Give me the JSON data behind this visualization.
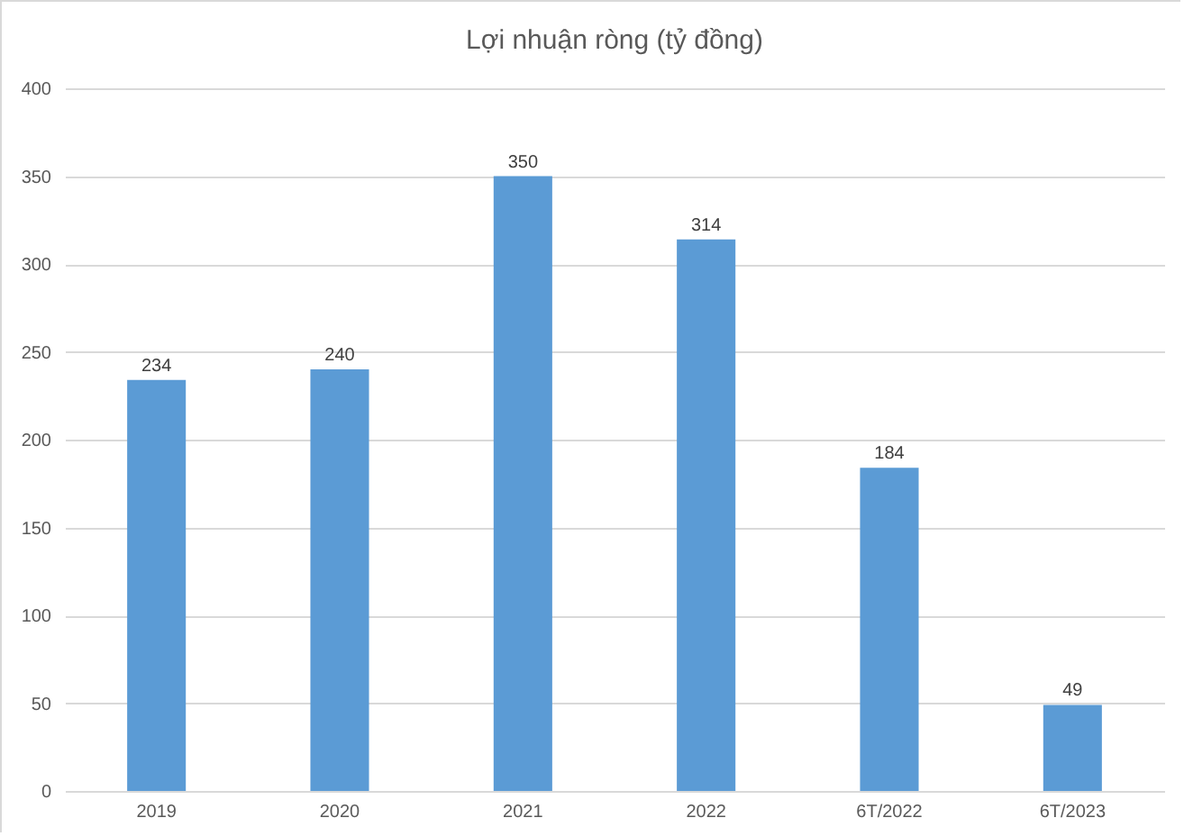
{
  "chart_data": {
    "type": "bar",
    "title": "Lợi nhuận ròng (tỷ đồng)",
    "categories": [
      "2019",
      "2020",
      "2021",
      "2022",
      "6T/2022",
      "6T/2023"
    ],
    "values": [
      234,
      240,
      350,
      314,
      184,
      49
    ],
    "color": "#5b9bd5",
    "ylim": [
      0,
      400
    ],
    "yticks": [
      0,
      50,
      100,
      150,
      200,
      250,
      300,
      350,
      400
    ],
    "grid": "y",
    "data_labels": true
  }
}
